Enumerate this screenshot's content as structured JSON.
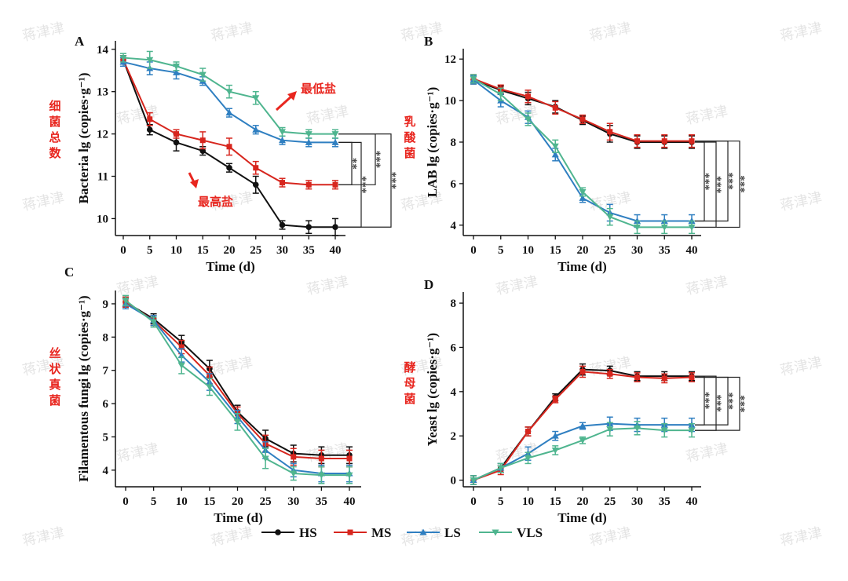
{
  "watermark": "蒋津津",
  "series_styles": [
    {
      "key": "HS",
      "color": "#111111",
      "marker": "circle"
    },
    {
      "key": "MS",
      "color": "#d7261e",
      "marker": "square"
    },
    {
      "key": "LS",
      "color": "#2f7fc1",
      "marker": "triangle-up"
    },
    {
      "key": "VLS",
      "color": "#4fb58f",
      "marker": "triangle-down"
    }
  ],
  "legend": [
    "HS",
    "MS",
    "LS",
    "VLS"
  ],
  "chart_data": [
    {
      "panel": "A",
      "type": "line",
      "side_label": "细菌总数",
      "ylabel": "Bacteria lg (copies·g⁻¹)",
      "xlabel": "Time (d)",
      "x": [
        0,
        5,
        10,
        15,
        20,
        25,
        30,
        35,
        40
      ],
      "ylim": [
        9.6,
        14.2
      ],
      "yticks": [
        10,
        11,
        12,
        13,
        14
      ],
      "series": [
        {
          "name": "HS",
          "values": [
            13.75,
            12.1,
            11.8,
            11.6,
            11.2,
            10.8,
            9.85,
            9.8,
            9.8
          ],
          "err": [
            0.1,
            0.12,
            0.2,
            0.1,
            0.1,
            0.2,
            0.1,
            0.15,
            0.2
          ]
        },
        {
          "name": "MS",
          "values": [
            13.75,
            12.35,
            12.0,
            11.85,
            11.7,
            11.2,
            10.85,
            10.8,
            10.8
          ],
          "err": [
            0.1,
            0.15,
            0.1,
            0.2,
            0.2,
            0.15,
            0.1,
            0.1,
            0.1
          ]
        },
        {
          "name": "LS",
          "values": [
            13.7,
            13.55,
            13.45,
            13.25,
            12.5,
            12.1,
            11.85,
            11.8,
            11.8
          ],
          "err": [
            0.1,
            0.15,
            0.15,
            0.1,
            0.1,
            0.1,
            0.1,
            0.1,
            0.1
          ]
        },
        {
          "name": "VLS",
          "values": [
            13.8,
            13.75,
            13.6,
            13.4,
            13.0,
            12.85,
            12.05,
            12.0,
            12.0
          ],
          "err": [
            0.1,
            0.2,
            0.1,
            0.15,
            0.15,
            0.15,
            0.1,
            0.1,
            0.1
          ]
        }
      ],
      "annotations": [
        {
          "text": "最低盐"
        },
        {
          "text": "最高盐"
        }
      ],
      "brackets": [
        "**",
        "***",
        "***",
        "***"
      ]
    },
    {
      "panel": "B",
      "type": "line",
      "side_label": "乳酸菌",
      "ylabel": "LAB  lg (copies·g⁻¹)",
      "xlabel": "Time (d)",
      "x": [
        0,
        5,
        10,
        15,
        20,
        25,
        30,
        35,
        40
      ],
      "ylim": [
        3.5,
        12.5
      ],
      "yticks": [
        4,
        6,
        8,
        10,
        12
      ],
      "series": [
        {
          "name": "HS",
          "values": [
            11.0,
            10.5,
            10.1,
            9.7,
            9.05,
            8.4,
            8.0,
            8.0,
            8.0
          ],
          "err": [
            0.2,
            0.2,
            0.3,
            0.3,
            0.2,
            0.4,
            0.3,
            0.3,
            0.3
          ]
        },
        {
          "name": "MS",
          "values": [
            11.05,
            10.55,
            10.2,
            9.65,
            9.1,
            8.5,
            8.05,
            8.05,
            8.05
          ],
          "err": [
            0.2,
            0.2,
            0.3,
            0.3,
            0.2,
            0.4,
            0.3,
            0.3,
            0.3
          ]
        },
        {
          "name": "LS",
          "values": [
            11.0,
            10.0,
            9.2,
            7.4,
            5.3,
            4.6,
            4.2,
            4.2,
            4.2
          ],
          "err": [
            0.2,
            0.3,
            0.3,
            0.3,
            0.2,
            0.4,
            0.3,
            0.3,
            0.3
          ]
        },
        {
          "name": "VLS",
          "values": [
            11.05,
            10.3,
            9.1,
            7.8,
            5.6,
            4.4,
            3.9,
            3.9,
            3.9
          ],
          "err": [
            0.2,
            0.3,
            0.3,
            0.3,
            0.2,
            0.4,
            0.3,
            0.3,
            0.3
          ]
        }
      ],
      "brackets": [
        "***",
        "***",
        "***",
        "***"
      ]
    },
    {
      "panel": "C",
      "type": "line",
      "side_label": "丝状真菌",
      "ylabel": "Filamentous fungi  lg (copies·g⁻¹)",
      "xlabel": "Time (d)",
      "x": [
        0,
        5,
        10,
        15,
        20,
        25,
        30,
        35,
        40
      ],
      "ylim": [
        3.5,
        9.4
      ],
      "yticks": [
        4,
        5,
        6,
        7,
        8,
        9
      ],
      "series": [
        {
          "name": "HS",
          "values": [
            9.05,
            8.55,
            7.85,
            7.05,
            5.75,
            4.95,
            4.5,
            4.45,
            4.45
          ],
          "err": [
            0.15,
            0.15,
            0.2,
            0.25,
            0.2,
            0.25,
            0.25,
            0.25,
            0.25
          ]
        },
        {
          "name": "MS",
          "values": [
            9.05,
            8.5,
            7.7,
            6.85,
            5.7,
            4.8,
            4.4,
            4.35,
            4.35
          ],
          "err": [
            0.15,
            0.15,
            0.2,
            0.25,
            0.2,
            0.25,
            0.25,
            0.25,
            0.25
          ]
        },
        {
          "name": "LS",
          "values": [
            9.0,
            8.5,
            7.45,
            6.65,
            5.6,
            4.6,
            4.0,
            3.9,
            3.9
          ],
          "err": [
            0.15,
            0.15,
            0.2,
            0.25,
            0.2,
            0.25,
            0.2,
            0.25,
            0.25
          ]
        },
        {
          "name": "VLS",
          "values": [
            9.1,
            8.45,
            7.15,
            6.5,
            5.45,
            4.35,
            3.9,
            3.85,
            3.85
          ],
          "err": [
            0.15,
            0.15,
            0.25,
            0.25,
            0.25,
            0.3,
            0.2,
            0.25,
            0.25
          ]
        }
      ]
    },
    {
      "panel": "D",
      "type": "line",
      "side_label": "酵母菌",
      "ylabel": "Yeast lg (copies·g⁻¹)",
      "xlabel": "Time (d)",
      "x": [
        0,
        5,
        10,
        15,
        20,
        25,
        30,
        35,
        40
      ],
      "ylim": [
        -0.3,
        8.5
      ],
      "yticks": [
        0,
        2,
        4,
        6,
        8
      ],
      "series": [
        {
          "name": "HS",
          "values": [
            0.0,
            0.55,
            2.2,
            3.75,
            5.0,
            4.95,
            4.7,
            4.7,
            4.7
          ],
          "err": [
            0.2,
            0.2,
            0.2,
            0.15,
            0.25,
            0.2,
            0.2,
            0.2,
            0.2
          ]
        },
        {
          "name": "MS",
          "values": [
            0.0,
            0.45,
            2.2,
            3.65,
            4.9,
            4.8,
            4.65,
            4.6,
            4.65
          ],
          "err": [
            0.2,
            0.2,
            0.2,
            0.15,
            0.25,
            0.2,
            0.2,
            0.2,
            0.2
          ]
        },
        {
          "name": "LS",
          "values": [
            0.0,
            0.55,
            1.2,
            2.0,
            2.45,
            2.55,
            2.5,
            2.5,
            2.5
          ],
          "err": [
            0.2,
            0.2,
            0.3,
            0.2,
            0.15,
            0.3,
            0.3,
            0.3,
            0.3
          ]
        },
        {
          "name": "VLS",
          "values": [
            0.0,
            0.55,
            1.0,
            1.35,
            1.8,
            2.3,
            2.35,
            2.25,
            2.25
          ],
          "err": [
            0.2,
            0.2,
            0.25,
            0.2,
            0.15,
            0.3,
            0.3,
            0.3,
            0.3
          ]
        }
      ],
      "brackets": [
        "***",
        "***",
        "***",
        "***"
      ]
    }
  ]
}
